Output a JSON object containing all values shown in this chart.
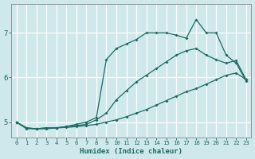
{
  "xlabel": "Humidex (Indice chaleur)",
  "bg_color": "#cfe8ec",
  "grid_color": "#ffffff",
  "line_color": "#1a6b62",
  "xlim": [
    -0.5,
    23.5
  ],
  "ylim": [
    4.65,
    7.65
  ],
  "yticks": [
    5,
    6,
    7
  ],
  "xticks": [
    0,
    1,
    2,
    3,
    4,
    5,
    6,
    7,
    8,
    9,
    10,
    11,
    12,
    13,
    14,
    15,
    16,
    17,
    18,
    19,
    20,
    21,
    22,
    23
  ],
  "line1_x": [
    0,
    1,
    2,
    3,
    4,
    5,
    6,
    7,
    8,
    9,
    10,
    11,
    12,
    13,
    14,
    15,
    16,
    17,
    18,
    19,
    20,
    21,
    22,
    23
  ],
  "line1_y": [
    5.0,
    4.85,
    4.85,
    4.85,
    4.87,
    4.88,
    4.9,
    4.92,
    4.95,
    5.0,
    5.05,
    5.12,
    5.2,
    5.28,
    5.38,
    5.48,
    5.58,
    5.68,
    5.75,
    5.85,
    5.95,
    6.05,
    6.1,
    5.95
  ],
  "line2_x": [
    0,
    1,
    2,
    3,
    4,
    5,
    6,
    7,
    8,
    9,
    10,
    11,
    12,
    13,
    14,
    15,
    16,
    17,
    18,
    19,
    20,
    21,
    22,
    23
  ],
  "line2_y": [
    5.0,
    4.87,
    4.85,
    4.87,
    4.87,
    4.9,
    4.92,
    4.95,
    5.05,
    5.2,
    5.5,
    5.7,
    5.9,
    6.05,
    6.2,
    6.35,
    6.5,
    6.6,
    6.65,
    6.5,
    6.4,
    6.32,
    6.38,
    5.95
  ],
  "line3_x": [
    0,
    1,
    2,
    3,
    4,
    5,
    6,
    7,
    8,
    9,
    10,
    11,
    12,
    13,
    14,
    15,
    16,
    17,
    18,
    19,
    20,
    21,
    22,
    23
  ],
  "line3_y": [
    5.0,
    4.87,
    4.85,
    4.87,
    4.87,
    4.9,
    4.95,
    5.0,
    5.1,
    6.4,
    6.65,
    6.75,
    6.85,
    7.0,
    7.0,
    7.0,
    6.95,
    6.88,
    7.3,
    7.0,
    7.0,
    6.5,
    6.32,
    5.92
  ]
}
